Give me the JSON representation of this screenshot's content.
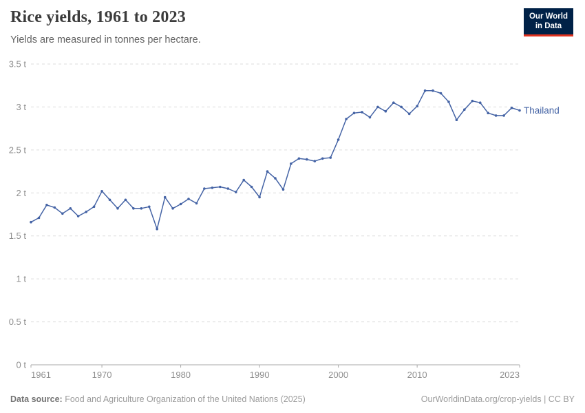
{
  "header": {
    "title": "Rice yields, 1961 to 2023",
    "subtitle": "Yields are measured in tonnes per hectare."
  },
  "logo": {
    "line1": "Our World",
    "line2": "in Data",
    "bg_color": "#002147",
    "accent_color": "#e0321f"
  },
  "chart_data": {
    "type": "line",
    "title": "Rice yields, 1961 to 2023",
    "xlabel": "",
    "ylabel": "tonnes per hectare",
    "xlim": [
      1961,
      2023
    ],
    "ylim": [
      0,
      3.5
    ],
    "grid": "horizontal-dashed",
    "legend_position": "end-of-line-label",
    "x_ticks": [
      {
        "year": 1961,
        "label": "1961"
      },
      {
        "year": 1970,
        "label": "1970"
      },
      {
        "year": 1980,
        "label": "1980"
      },
      {
        "year": 1990,
        "label": "1990"
      },
      {
        "year": 2000,
        "label": "2000"
      },
      {
        "year": 2010,
        "label": "2010"
      },
      {
        "year": 2023,
        "label": "2023"
      }
    ],
    "y_ticks": [
      {
        "v": 0,
        "label": "0 t"
      },
      {
        "v": 0.5,
        "label": "0.5 t"
      },
      {
        "v": 1,
        "label": "1 t"
      },
      {
        "v": 1.5,
        "label": "1.5 t"
      },
      {
        "v": 2,
        "label": "2 t"
      },
      {
        "v": 2.5,
        "label": "2.5 t"
      },
      {
        "v": 3,
        "label": "3 t"
      },
      {
        "v": 3.5,
        "label": "3.5 t"
      }
    ],
    "series": [
      {
        "name": "Thailand",
        "color": "#4463a5",
        "x": [
          1961,
          1962,
          1963,
          1964,
          1965,
          1966,
          1967,
          1968,
          1969,
          1970,
          1971,
          1972,
          1973,
          1974,
          1975,
          1976,
          1977,
          1978,
          1979,
          1980,
          1981,
          1982,
          1983,
          1984,
          1985,
          1986,
          1987,
          1988,
          1989,
          1990,
          1991,
          1992,
          1993,
          1994,
          1995,
          1996,
          1997,
          1998,
          1999,
          2000,
          2001,
          2002,
          2003,
          2004,
          2005,
          2006,
          2007,
          2008,
          2009,
          2010,
          2011,
          2012,
          2013,
          2014,
          2015,
          2016,
          2017,
          2018,
          2019,
          2020,
          2021,
          2022,
          2023
        ],
        "values": [
          1.66,
          1.71,
          1.86,
          1.83,
          1.76,
          1.82,
          1.73,
          1.78,
          1.84,
          2.02,
          1.92,
          1.82,
          1.92,
          1.82,
          1.82,
          1.84,
          1.58,
          1.95,
          1.82,
          1.87,
          1.93,
          1.88,
          2.05,
          2.06,
          2.07,
          2.05,
          2.01,
          2.15,
          2.07,
          1.95,
          2.25,
          2.17,
          2.04,
          2.34,
          2.4,
          2.39,
          2.37,
          2.4,
          2.41,
          2.62,
          2.86,
          2.93,
          2.94,
          2.88,
          3.0,
          2.95,
          3.05,
          3.0,
          2.92,
          3.01,
          3.19,
          3.19,
          3.16,
          3.06,
          2.85,
          2.97,
          3.07,
          3.05,
          2.93,
          2.9,
          2.9,
          2.99,
          2.96
        ]
      }
    ]
  },
  "footer": {
    "source_label": "Data source:",
    "source_text": "Food and Agriculture Organization of the United Nations (2025)",
    "attribution": "OurWorldinData.org/crop-yields | CC BY"
  }
}
